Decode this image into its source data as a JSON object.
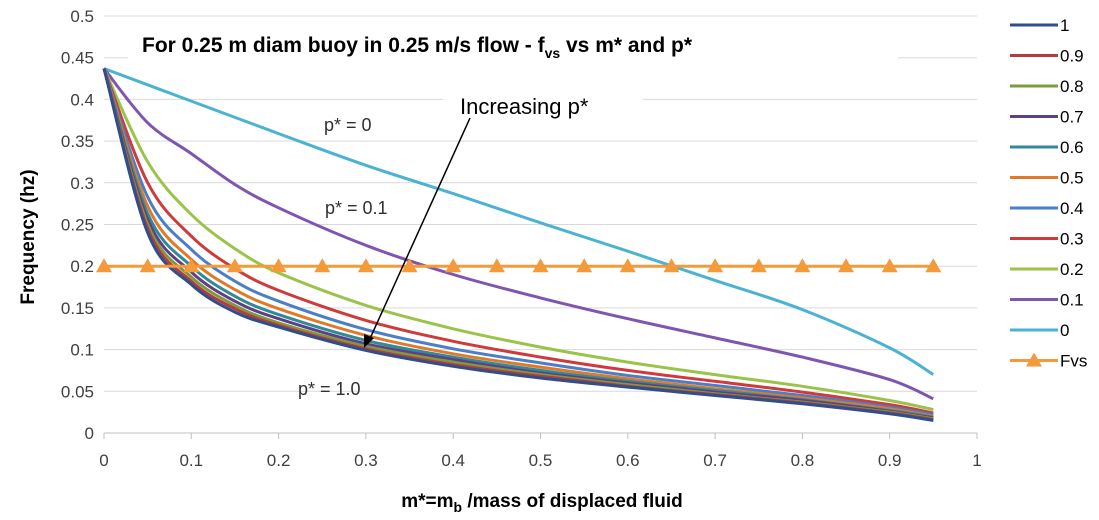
{
  "chart_data": {
    "type": "line",
    "title": {
      "main": "For 0.25 m diam buoy in 0.25 m/s flow - f",
      "sub": "vs",
      "tail": " vs m* and p*"
    },
    "xlabel": {
      "pre": "m*=m",
      "sub": "b",
      "post": " /mass of displaced fluid"
    },
    "ylabel": "Frequency (hz)",
    "xlim": [
      0,
      1
    ],
    "ylim": [
      0,
      0.5
    ],
    "x_ticks": [
      "0",
      "0.1",
      "0.2",
      "0.3",
      "0.4",
      "0.5",
      "0.6",
      "0.7",
      "0.8",
      "0.9",
      "1"
    ],
    "y_ticks": [
      "0",
      "0.05",
      "0.1",
      "0.15",
      "0.2",
      "0.25",
      "0.3",
      "0.35",
      "0.4",
      "0.45",
      "0.5"
    ],
    "grid": "horizontal",
    "legend_position": "right",
    "annotations": {
      "p0": "p* = 0",
      "p01": "p* = 0.1",
      "p10": "p* = 1.0",
      "increasing": "Increasing p*"
    },
    "series": [
      {
        "name": "1",
        "color": "#2f4e8c",
        "x": [
          0,
          0.05,
          0.1,
          0.15,
          0.2,
          0.3,
          0.4,
          0.5,
          0.6,
          0.7,
          0.8,
          0.9,
          0.95
        ],
        "y": [
          0.437,
          0.24,
          0.178,
          0.145,
          0.127,
          0.099,
          0.08,
          0.066,
          0.055,
          0.045,
          0.035,
          0.023,
          0.015
        ]
      },
      {
        "name": "0.9",
        "color": "#b43c3c",
        "x": [
          0,
          0.05,
          0.1,
          0.15,
          0.2,
          0.3,
          0.4,
          0.5,
          0.6,
          0.7,
          0.8,
          0.9,
          0.95
        ],
        "y": [
          0.437,
          0.245,
          0.182,
          0.149,
          0.129,
          0.101,
          0.082,
          0.068,
          0.056,
          0.046,
          0.036,
          0.024,
          0.016
        ]
      },
      {
        "name": "0.8",
        "color": "#7f9a3e",
        "x": [
          0,
          0.05,
          0.1,
          0.15,
          0.2,
          0.3,
          0.4,
          0.5,
          0.6,
          0.7,
          0.8,
          0.9,
          0.95
        ],
        "y": [
          0.437,
          0.25,
          0.187,
          0.153,
          0.132,
          0.104,
          0.085,
          0.07,
          0.058,
          0.047,
          0.037,
          0.025,
          0.017
        ]
      },
      {
        "name": "0.7",
        "color": "#5f3f86",
        "x": [
          0,
          0.05,
          0.1,
          0.15,
          0.2,
          0.3,
          0.4,
          0.5,
          0.6,
          0.7,
          0.8,
          0.9,
          0.95
        ],
        "y": [
          0.437,
          0.256,
          0.193,
          0.158,
          0.137,
          0.107,
          0.088,
          0.072,
          0.06,
          0.049,
          0.039,
          0.026,
          0.018
        ]
      },
      {
        "name": "0.6",
        "color": "#2f8a9a",
        "x": [
          0,
          0.05,
          0.1,
          0.15,
          0.2,
          0.3,
          0.4,
          0.5,
          0.6,
          0.7,
          0.8,
          0.9,
          0.95
        ],
        "y": [
          0.437,
          0.263,
          0.2,
          0.164,
          0.142,
          0.111,
          0.091,
          0.075,
          0.062,
          0.051,
          0.04,
          0.027,
          0.019
        ]
      },
      {
        "name": "0.5",
        "color": "#e07a2a",
        "x": [
          0,
          0.05,
          0.1,
          0.15,
          0.2,
          0.3,
          0.4,
          0.5,
          0.6,
          0.7,
          0.8,
          0.9,
          0.95
        ],
        "y": [
          0.437,
          0.272,
          0.208,
          0.172,
          0.149,
          0.117,
          0.095,
          0.079,
          0.065,
          0.053,
          0.042,
          0.029,
          0.02
        ]
      },
      {
        "name": "0.4",
        "color": "#4a7fc8",
        "x": [
          0,
          0.05,
          0.1,
          0.15,
          0.2,
          0.3,
          0.4,
          0.5,
          0.6,
          0.7,
          0.8,
          0.9,
          0.95
        ],
        "y": [
          0.437,
          0.283,
          0.22,
          0.182,
          0.158,
          0.124,
          0.101,
          0.084,
          0.069,
          0.057,
          0.045,
          0.031,
          0.022
        ]
      },
      {
        "name": "0.3",
        "color": "#cf3a3a",
        "x": [
          0,
          0.05,
          0.1,
          0.15,
          0.2,
          0.3,
          0.4,
          0.5,
          0.6,
          0.7,
          0.8,
          0.9,
          0.95
        ],
        "y": [
          0.437,
          0.3,
          0.236,
          0.197,
          0.171,
          0.135,
          0.11,
          0.091,
          0.075,
          0.062,
          0.049,
          0.034,
          0.024
        ]
      },
      {
        "name": "0.2",
        "color": "#9bc34a",
        "x": [
          0,
          0.05,
          0.1,
          0.15,
          0.2,
          0.3,
          0.4,
          0.5,
          0.6,
          0.7,
          0.8,
          0.9,
          0.95
        ],
        "y": [
          0.437,
          0.325,
          0.262,
          0.221,
          0.192,
          0.153,
          0.125,
          0.103,
          0.085,
          0.07,
          0.056,
          0.039,
          0.028
        ]
      },
      {
        "name": "0.1",
        "color": "#7e55b0",
        "x": [
          0,
          0.05,
          0.1,
          0.15,
          0.2,
          0.3,
          0.4,
          0.5,
          0.6,
          0.7,
          0.8,
          0.9,
          0.95
        ],
        "y": [
          0.437,
          0.372,
          0.335,
          0.298,
          0.27,
          0.225,
          0.19,
          0.162,
          0.137,
          0.114,
          0.091,
          0.064,
          0.041
        ]
      },
      {
        "name": "0",
        "color": "#4bb3d2",
        "x": [
          0,
          0.1,
          0.2,
          0.3,
          0.4,
          0.5,
          0.6,
          0.7,
          0.8,
          0.9,
          0.95
        ],
        "y": [
          0.437,
          0.398,
          0.359,
          0.321,
          0.287,
          0.252,
          0.218,
          0.183,
          0.148,
          0.102,
          0.07
        ]
      },
      {
        "name": "Fvs",
        "color": "#f39a3a",
        "marker": "triangle",
        "x": [
          0,
          0.05,
          0.1,
          0.15,
          0.2,
          0.25,
          0.3,
          0.35,
          0.4,
          0.45,
          0.5,
          0.55,
          0.6,
          0.65,
          0.7,
          0.75,
          0.8,
          0.85,
          0.9,
          0.95
        ],
        "y": [
          0.2,
          0.2,
          0.2,
          0.2,
          0.2,
          0.2,
          0.2,
          0.2,
          0.2,
          0.2,
          0.2,
          0.2,
          0.2,
          0.2,
          0.2,
          0.2,
          0.2,
          0.2,
          0.2,
          0.2
        ]
      }
    ]
  }
}
